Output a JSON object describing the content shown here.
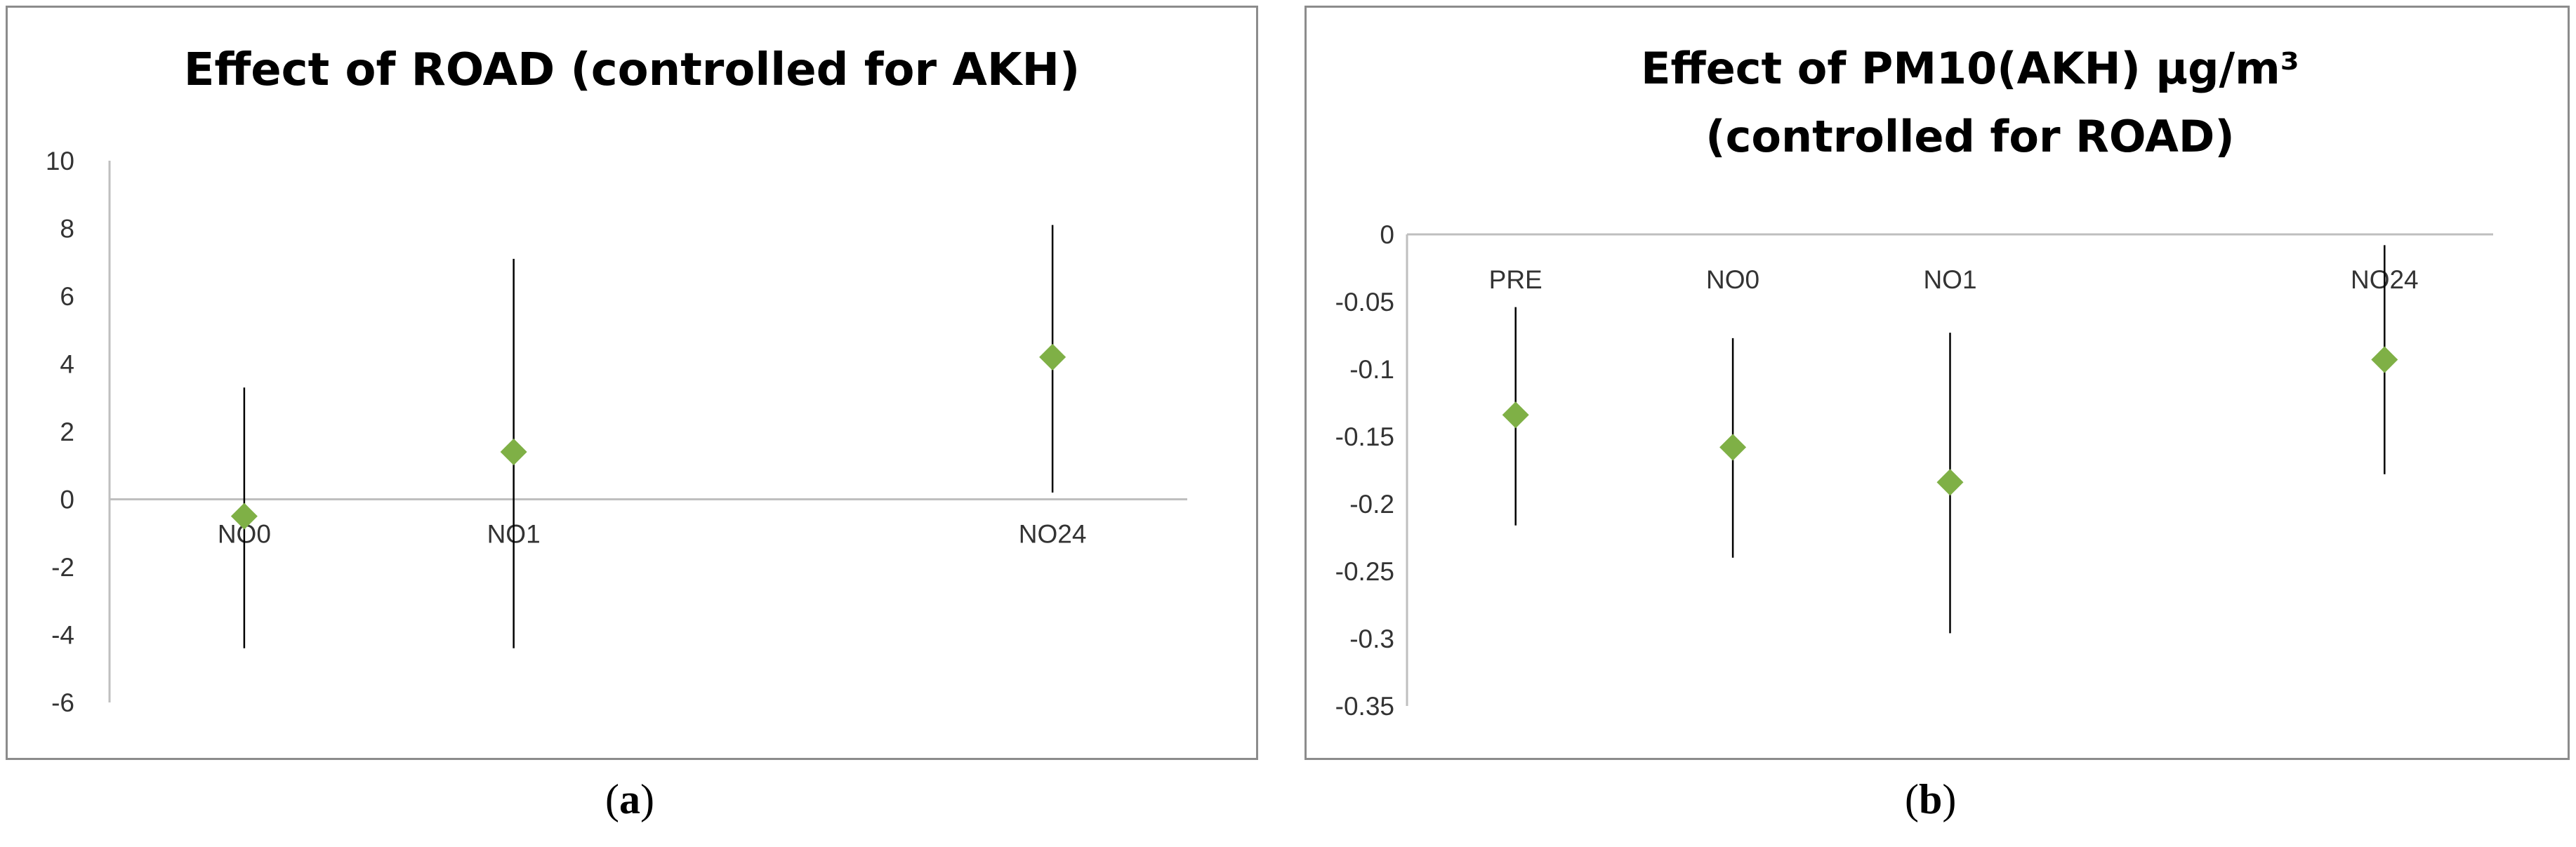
{
  "chart_data": [
    {
      "type": "scatter",
      "title_lines": [
        "Effect of ROAD (controlled for AKH)"
      ],
      "xlabel": "",
      "ylabel": "",
      "ylim": [
        -6,
        10
      ],
      "yticks": [
        10,
        8,
        6,
        4,
        2,
        0,
        -2,
        -4,
        -6
      ],
      "ytick_labels": [
        "10",
        "8",
        "6",
        "4",
        "2",
        "0",
        "-2",
        "-4",
        "-6"
      ],
      "categories": [
        "NO0",
        "NO1",
        "NO24"
      ],
      "x_index": [
        0,
        1,
        3
      ],
      "x_slots": 4,
      "estimate": [
        -0.5,
        1.4,
        4.2
      ],
      "lower": [
        -4.4,
        -4.4,
        0.2
      ],
      "upper": [
        3.3,
        7.1,
        8.1
      ],
      "grid": false,
      "legend": "none",
      "marker_color": "#7fb046",
      "line_color": "#000000"
    },
    {
      "type": "scatter",
      "title_lines": [
        "Effect of PM10(AKH) μg/m³",
        "(controlled for ROAD)"
      ],
      "xlabel": "",
      "ylabel": "",
      "ylim": [
        -0.35,
        0
      ],
      "yticks": [
        0,
        -0.05,
        -0.1,
        -0.15,
        -0.2,
        -0.25,
        -0.3,
        -0.35
      ],
      "ytick_labels": [
        "0",
        "-0.05",
        "-0.1",
        "-0.15",
        "-0.2",
        "-0.25",
        "-0.3",
        "-0.35"
      ],
      "categories": [
        "PRE",
        "NO0",
        "NO1",
        "NO24"
      ],
      "x_index": [
        0,
        1,
        2,
        4
      ],
      "x_slots": 5,
      "estimate": [
        -0.134,
        -0.158,
        -0.184,
        -0.093
      ],
      "lower": [
        -0.216,
        -0.24,
        -0.296,
        -0.178
      ],
      "upper": [
        -0.054,
        -0.077,
        -0.073,
        -0.008
      ],
      "grid": false,
      "legend": "none",
      "marker_color": "#7fb046",
      "line_color": "#000000"
    }
  ],
  "captions": [
    {
      "open": "(",
      "letter": "a",
      "close": ")"
    },
    {
      "open": "(",
      "letter": "b",
      "close": ")"
    }
  ]
}
